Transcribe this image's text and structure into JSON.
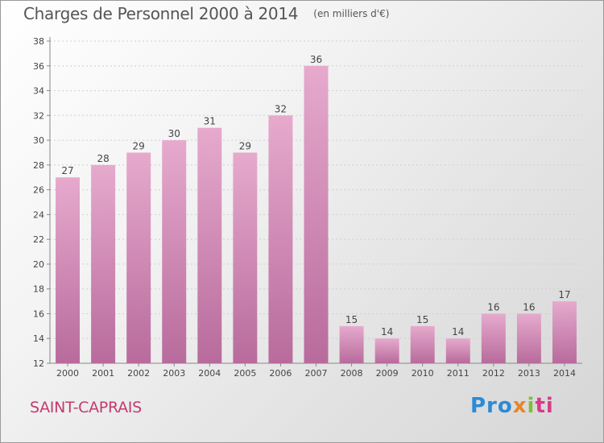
{
  "title": "Charges de Personnel 2000 à 2014",
  "subtitle": "(en milliers d'€)",
  "commune": "SAINT-CAPRAIS",
  "logo": {
    "p1": "Pro",
    "p2": "x",
    "p3": "i",
    "p4": "ti"
  },
  "colors": {
    "bar_top": "#e6aacd",
    "bar_bottom": "#b86b9c",
    "commune": "#c23b6e",
    "text": "#555555"
  },
  "chart_data": {
    "type": "bar",
    "categories": [
      "2000",
      "2001",
      "2002",
      "2003",
      "2004",
      "2005",
      "2006",
      "2007",
      "2008",
      "2009",
      "2010",
      "2011",
      "2012",
      "2013",
      "2014"
    ],
    "values": [
      27,
      28,
      29,
      30,
      31,
      29,
      32,
      36,
      15,
      14,
      15,
      14,
      16,
      16,
      17
    ],
    "ylim": [
      12,
      38
    ],
    "yticks": [
      12,
      14,
      16,
      18,
      20,
      22,
      24,
      26,
      28,
      30,
      32,
      34,
      36,
      38
    ],
    "grid": true,
    "data_labels": true
  }
}
